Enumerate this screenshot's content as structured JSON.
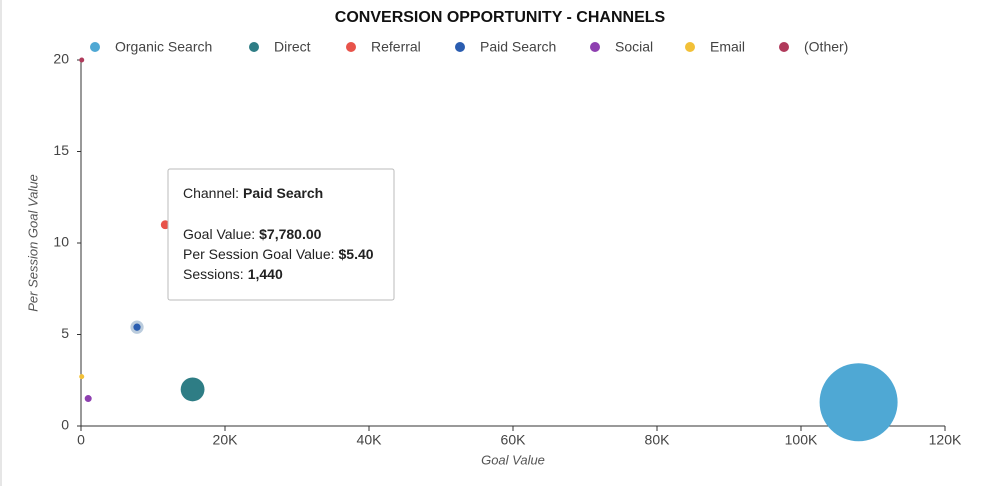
{
  "chart_data": {
    "type": "bubble",
    "title": "CONVERSION OPPORTUNITY - CHANNELS",
    "x_label": "Goal Value",
    "y_label": "Per Session Goal Value",
    "xlim": [
      0,
      120000
    ],
    "ylim": [
      0,
      20
    ],
    "xticks": [
      0,
      {
        "value": 20000,
        "label": "20K"
      },
      {
        "value": 40000,
        "label": "40K"
      },
      {
        "value": 60000,
        "label": "60K"
      },
      {
        "value": 80000,
        "label": "80K"
      },
      {
        "value": 100000,
        "label": "100K"
      },
      {
        "value": 120000,
        "label": "120K"
      }
    ],
    "yticks": [
      0,
      5,
      10,
      15,
      20
    ],
    "grid": false,
    "legend": "top",
    "series": [
      {
        "name": "Organic Search",
        "color": "#4fa8d4",
        "x": [
          108000
        ],
        "values": [
          1.3
        ],
        "sizes": [
          83000
        ]
      },
      {
        "name": "Direct",
        "color": "#2e7d85",
        "x": [
          15500
        ],
        "values": [
          2.0
        ],
        "sizes": [
          7750
        ]
      },
      {
        "name": "Referral",
        "color": "#e8534a",
        "x": [
          11700
        ],
        "values": [
          11
        ],
        "sizes": [
          1064
        ]
      },
      {
        "name": "Paid Search",
        "color": "#2a5db0",
        "x": [
          7780
        ],
        "values": [
          5.4
        ],
        "sizes": [
          1440
        ]
      },
      {
        "name": "Social",
        "color": "#8e3fb0",
        "x": [
          1000
        ],
        "values": [
          1.5
        ],
        "sizes": [
          667
        ]
      },
      {
        "name": "Email",
        "color": "#f2c037",
        "x": [
          100
        ],
        "values": [
          2.7
        ],
        "sizes": [
          37
        ]
      },
      {
        "name": "(Other)",
        "color": "#b03a5b",
        "x": [
          100
        ],
        "values": [
          20
        ],
        "sizes": [
          5
        ]
      }
    ],
    "tooltip": [
      {
        "label": "Channel:",
        "value": "Paid Search"
      },
      {
        "label": "Goal Value:",
        "value": "$7,780.00"
      },
      {
        "label": "Per Session Goal Value:",
        "value": "$5.40"
      },
      {
        "label": "Sessions:",
        "value": "1,440"
      }
    ]
  }
}
